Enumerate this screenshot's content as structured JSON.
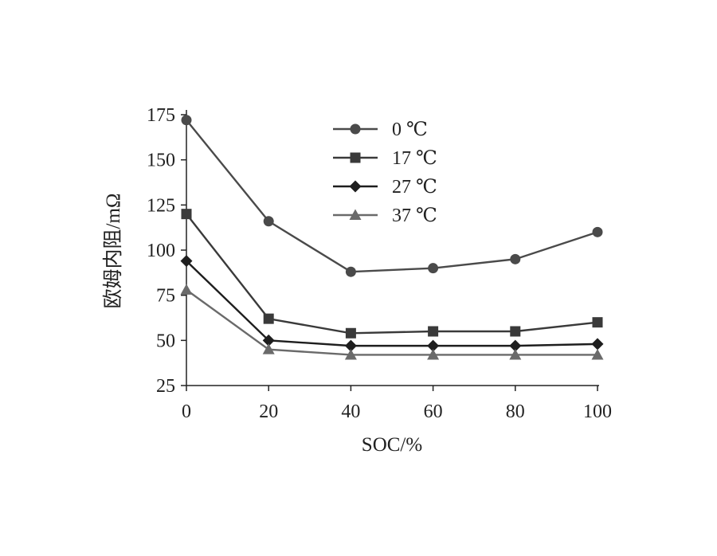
{
  "chart_data": {
    "type": "line",
    "xlabel": "SOC/%",
    "ylabel": "欧姆内阻/mΩ",
    "x": [
      0,
      20,
      40,
      60,
      80,
      100
    ],
    "xticks": [
      "0",
      "20",
      "40",
      "60",
      "80",
      "100"
    ],
    "yticks": [
      "25",
      "50",
      "75",
      "100",
      "125",
      "150",
      "175"
    ],
    "xlim": [
      0,
      100
    ],
    "ylim": [
      25,
      175
    ],
    "grid": false,
    "legend_position": "top-center",
    "series": [
      {
        "name": "0 ℃",
        "marker": "circle",
        "color": "#4a4a4a",
        "values": [
          172,
          116,
          88,
          90,
          95,
          110
        ]
      },
      {
        "name": "17 ℃",
        "marker": "square",
        "color": "#3a3a3a",
        "values": [
          120,
          62,
          54,
          55,
          55,
          60
        ]
      },
      {
        "name": "27 ℃",
        "marker": "diamond",
        "color": "#1e1e1e",
        "values": [
          94,
          50,
          47,
          47,
          47,
          48
        ]
      },
      {
        "name": "37 ℃",
        "marker": "triangle",
        "color": "#6a6a6a",
        "values": [
          78,
          45,
          42,
          42,
          42,
          42
        ]
      }
    ]
  }
}
